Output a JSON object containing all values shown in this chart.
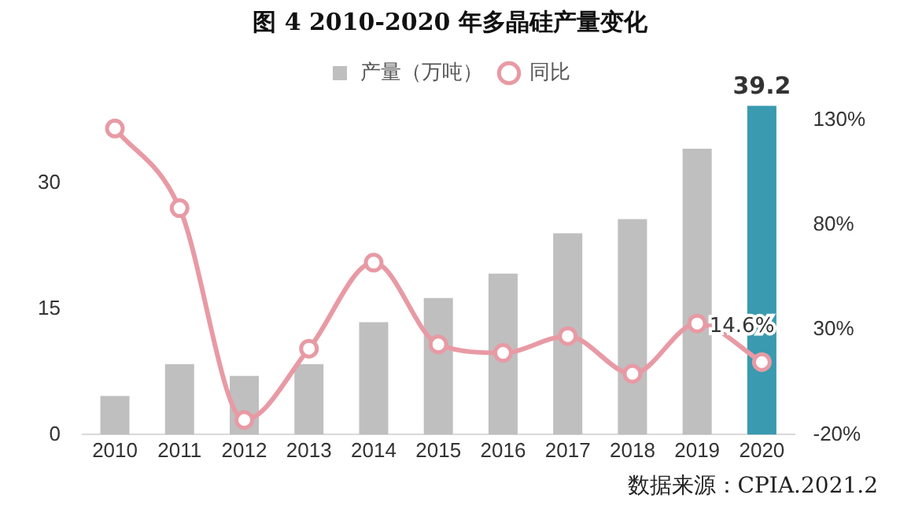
{
  "chart_data": {
    "type": "bar",
    "title": "图 4 2010-2020 年多晶硅产量变化",
    "categories": [
      "2010",
      "2011",
      "2012",
      "2013",
      "2014",
      "2015",
      "2016",
      "2017",
      "2018",
      "2019",
      "2020"
    ],
    "series": [
      {
        "name": "产量（万吨）",
        "color": "#bfbfbf",
        "colors": [
          "#bfbfbf",
          "#bfbfbf",
          "#bfbfbf",
          "#bfbfbf",
          "#bfbfbf",
          "#bfbfbf",
          "#bfbfbf",
          "#bfbfbf",
          "#bfbfbf",
          "#bfbfbf",
          "#3a9ab0"
        ],
        "values": [
          4.6,
          8.4,
          7.0,
          8.4,
          13.4,
          16.3,
          19.2,
          24.0,
          25.7,
          34.1,
          39.2
        ],
        "value_labels": [
          null,
          null,
          null,
          null,
          null,
          null,
          null,
          null,
          null,
          null,
          "39.2"
        ]
      },
      {
        "type": "line",
        "axis": "y2",
        "name": "同比",
        "color": "#e89aa4",
        "values": [
          126,
          88,
          -13,
          21,
          62,
          23,
          19,
          27,
          9,
          33,
          14.6
        ],
        "value_labels": [
          null,
          null,
          null,
          null,
          null,
          null,
          null,
          null,
          null,
          null,
          "14.6%"
        ]
      }
    ],
    "ylim": [
      0,
      40
    ],
    "yticks": [
      0,
      15,
      30
    ],
    "y2lim": [
      -20,
      140
    ],
    "y2ticks": [
      {
        "value": -20,
        "label": "-20%"
      },
      {
        "value": 30,
        "label": "30%"
      },
      {
        "value": 80,
        "label": "80%"
      },
      {
        "value": 130,
        "label": "130%"
      }
    ],
    "marker": "circle",
    "legend": "top",
    "grid": false,
    "annotations": [
      "数据来源：CPIA.2021.2"
    ]
  }
}
